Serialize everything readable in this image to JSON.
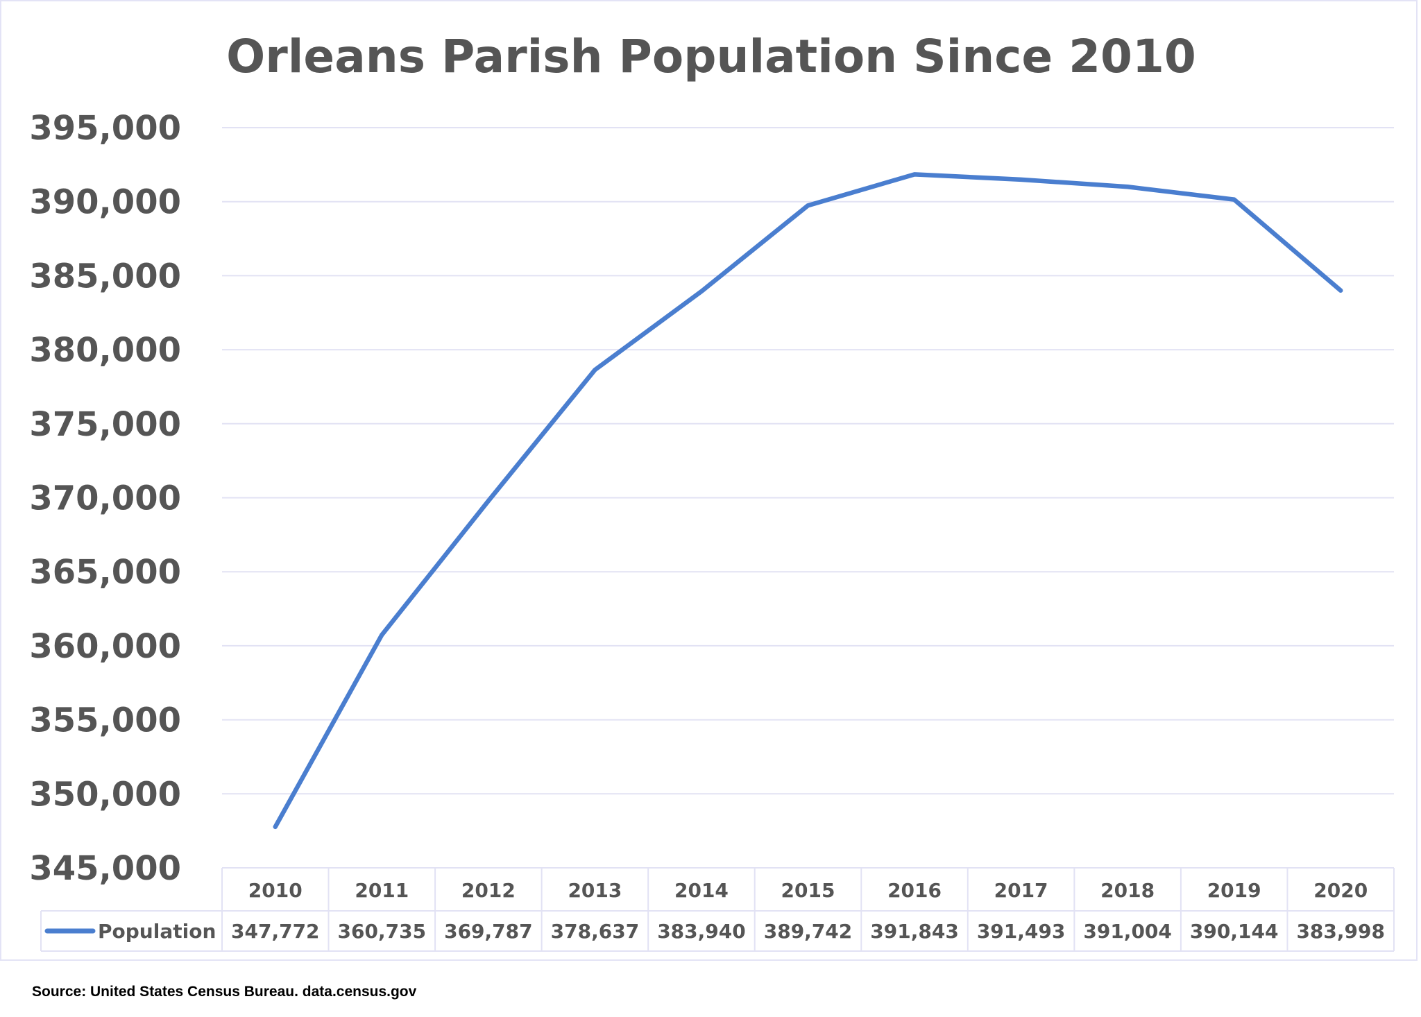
{
  "chart_data": {
    "type": "line",
    "title": "Orleans Parish Population Since 2010",
    "categories": [
      "2010",
      "2011",
      "2012",
      "2013",
      "2014",
      "2015",
      "2016",
      "2017",
      "2018",
      "2019",
      "2020"
    ],
    "series": [
      {
        "name": "Population",
        "values": [
          347772,
          360735,
          369787,
          378637,
          383940,
          389742,
          391843,
          391493,
          391004,
          390144,
          383998
        ],
        "labels": [
          "347,772",
          "360,735",
          "369,787",
          "378,637",
          "383,940",
          "389,742",
          "391,843",
          "391,493",
          "391,004",
          "390,144",
          "383,998"
        ],
        "color": "#4a7ecf"
      }
    ],
    "ylim": [
      345000,
      395000
    ],
    "yticks": [
      345000,
      350000,
      355000,
      360000,
      365000,
      370000,
      375000,
      380000,
      385000,
      390000,
      395000
    ],
    "ytick_labels": [
      "345,000",
      "350,000",
      "355,000",
      "360,000",
      "365,000",
      "370,000",
      "375,000",
      "380,000",
      "385,000",
      "390,000",
      "395,000"
    ],
    "grid": true,
    "legend": "data-table",
    "data_table": true,
    "gridline_color": "#e2e2f4",
    "text_color": "#555555"
  },
  "source": "Source: United States Census Bureau. data.census.gov"
}
